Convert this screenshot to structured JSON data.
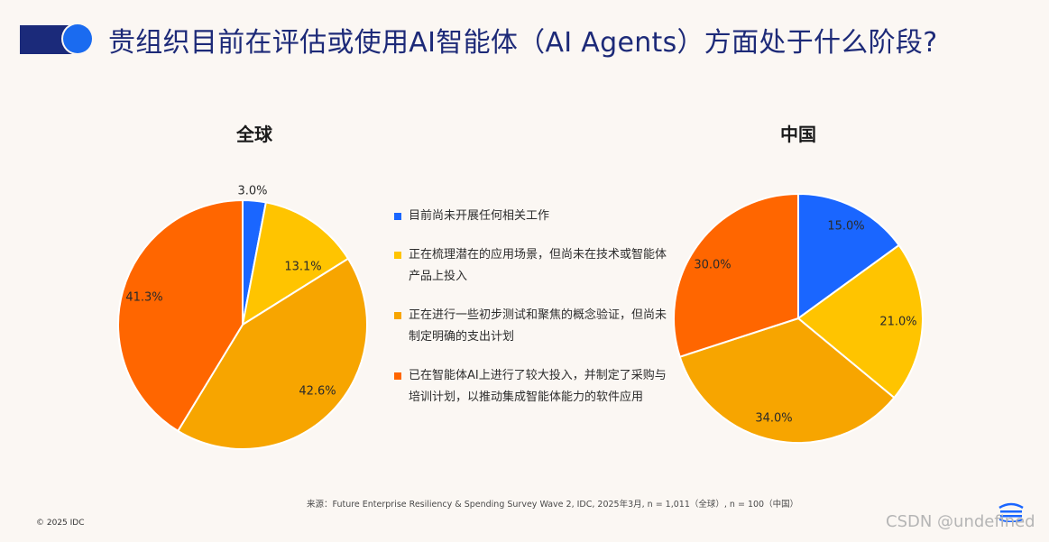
{
  "title": "贵组织目前在评估或使用AI智能体（AI Agents）方面处于什么阶段?",
  "legend": [
    {
      "label": "目前尚未开展任何相关工作",
      "color": "#1a66ff"
    },
    {
      "label": "正在梳理潜在的应用场景，但尚未在技术或智能体产品上投入",
      "color": "#ffc400"
    },
    {
      "label": "正在进行一些初步测试和聚焦的概念验证，但尚未制定明确的支出计划",
      "color": "#f7a500"
    },
    {
      "label": "已在智能体AI上进行了较大投入，并制定了采购与培训计划，以推动集成智能体能力的软件应用",
      "color": "#ff6600"
    }
  ],
  "chart_data": [
    {
      "type": "pie",
      "title": "全球",
      "categories": [
        "目前尚未开展任何相关工作",
        "正在梳理潜在的应用场景，但尚未在技术或智能体产品上投入",
        "正在进行一些初步测试和聚焦的概念验证，但尚未制定明确的支出计划",
        "已在智能体AI上进行了较大投入，并制定了采购与培训计划，以推动集成智能体能力的软件应用"
      ],
      "values": [
        3.0,
        13.1,
        42.6,
        41.3
      ],
      "labels": [
        "3.0%",
        "13.1%",
        "42.6%",
        "41.3%"
      ],
      "colors": [
        "#1a66ff",
        "#ffc400",
        "#f7a500",
        "#ff6600"
      ]
    },
    {
      "type": "pie",
      "title": "中国",
      "categories": [
        "目前尚未开展任何相关工作",
        "正在梳理潜在的应用场景，但尚未在技术或智能体产品上投入",
        "正在进行一些初步测试和聚焦的概念验证，但尚未制定明确的支出计划",
        "已在智能体AI上进行了较大投入，并制定了采购与培训计划，以推动集成智能体能力的软件应用"
      ],
      "values": [
        15.0,
        21.0,
        34.0,
        30.0
      ],
      "labels": [
        "15.0%",
        "21.0%",
        "34.0%",
        "30.0%"
      ],
      "colors": [
        "#1a66ff",
        "#ffc400",
        "#f7a500",
        "#ff6600"
      ]
    }
  ],
  "source": "来源：Future Enterprise Resiliency & Spending Survey Wave 2, IDC, 2025年3月, n = 1,011（全球）, n = 100（中国）",
  "copyright": "© 2025 IDC",
  "watermark": "CSDN @undefined"
}
